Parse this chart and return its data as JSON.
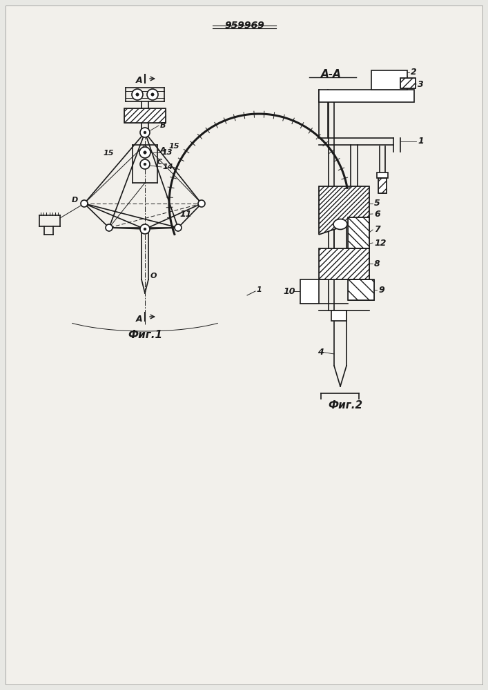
{
  "title": "959969",
  "fig1_label": "Фиг.1",
  "fig2_label": "Фиг.2",
  "section_label": "A-A",
  "bg_color": "#e8e8e4",
  "line_color": "#1a1a1a"
}
